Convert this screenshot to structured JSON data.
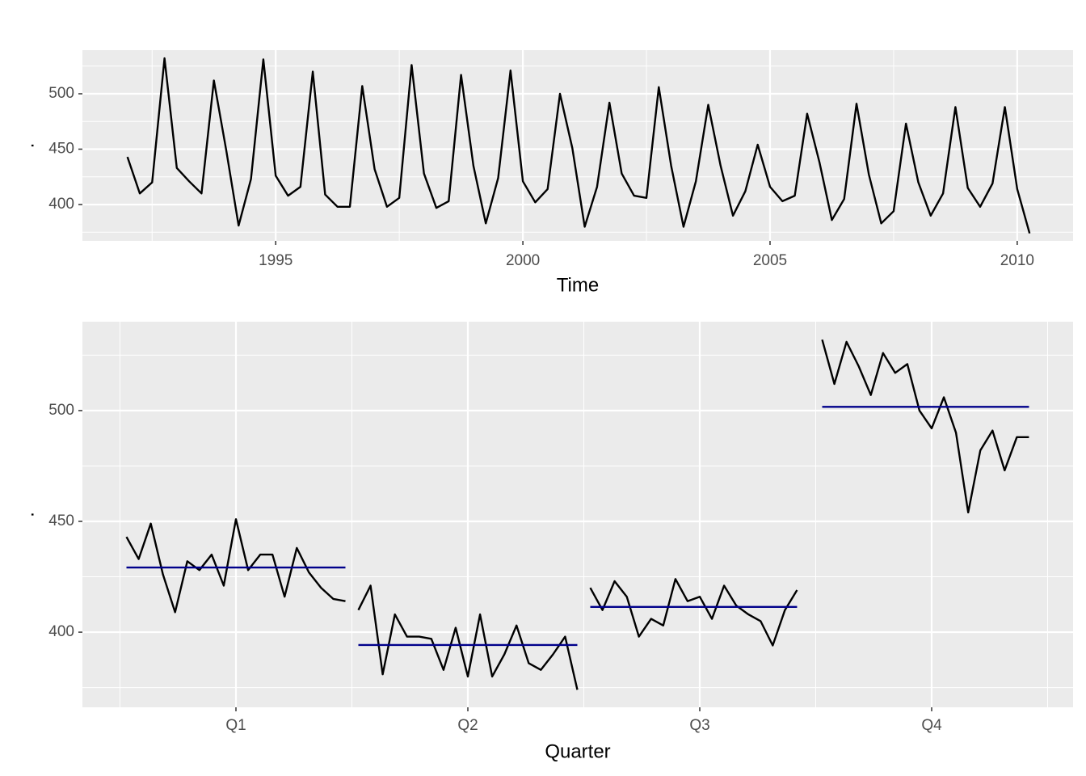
{
  "chart_data": [
    {
      "type": "line",
      "xlabel": "Time",
      "ylabel": ".",
      "color": "#000000",
      "x": [
        1992,
        1992.25,
        1992.5,
        1992.75,
        1993,
        1993.25,
        1993.5,
        1993.75,
        1994,
        1994.25,
        1994.5,
        1994.75,
        1995,
        1995.25,
        1995.5,
        1995.75,
        1996,
        1996.25,
        1996.5,
        1996.75,
        1997,
        1997.25,
        1997.5,
        1997.75,
        1998,
        1998.25,
        1998.5,
        1998.75,
        1999,
        1999.25,
        1999.5,
        1999.75,
        2000,
        2000.25,
        2000.5,
        2000.75,
        2001,
        2001.25,
        2001.5,
        2001.75,
        2002,
        2002.25,
        2002.5,
        2002.75,
        2003,
        2003.25,
        2003.5,
        2003.75,
        2004,
        2004.25,
        2004.5,
        2004.75,
        2005,
        2005.25,
        2005.5,
        2005.75,
        2006,
        2006.25,
        2006.5,
        2006.75,
        2007,
        2007.25,
        2007.5,
        2007.75,
        2008,
        2008.25,
        2008.5,
        2008.75,
        2009,
        2009.25,
        2009.5,
        2009.75,
        2010,
        2010.25
      ],
      "values": [
        443,
        410,
        420,
        532,
        433,
        421,
        410,
        512,
        449,
        381,
        423,
        531,
        426,
        408,
        416,
        520,
        409,
        398,
        398,
        507,
        432,
        398,
        406,
        526,
        428,
        397,
        403,
        517,
        435,
        383,
        424,
        521,
        421,
        402,
        414,
        500,
        451,
        380,
        416,
        492,
        428,
        408,
        406,
        506,
        435,
        380,
        421,
        490,
        435,
        390,
        412,
        454,
        416,
        403,
        408,
        482,
        438,
        386,
        405,
        491,
        427,
        383,
        394,
        473,
        420,
        390,
        410,
        488,
        415,
        398,
        419,
        488,
        414,
        374
      ],
      "xlim": [
        1991.09,
        2011.13
      ],
      "ylim": [
        367.2,
        539.4
      ],
      "xticks": [
        1995,
        2000,
        2005,
        2010
      ],
      "xticks_minor": [
        1992.5,
        1997.5,
        2002.5,
        2007.5
      ],
      "yticks": [
        400,
        450,
        500
      ],
      "yticks_minor": [
        375,
        425,
        475,
        525
      ],
      "grid": true
    },
    {
      "type": "subseries",
      "xlabel": "Quarter",
      "ylabel": ".",
      "color": "#000000",
      "mean_color": "#00008b",
      "categories": [
        "Q1",
        "Q2",
        "Q3",
        "Q4"
      ],
      "values": [
        [
          443,
          433,
          449,
          426,
          409,
          432,
          428,
          435,
          421,
          451,
          428,
          435,
          435,
          416,
          438,
          427,
          420,
          415,
          414
        ],
        [
          410,
          421,
          381,
          408,
          398,
          398,
          397,
          383,
          402,
          380,
          408,
          380,
          390,
          403,
          386,
          383,
          390,
          398,
          374
        ],
        [
          420,
          410,
          423,
          416,
          398,
          406,
          403,
          424,
          414,
          416,
          406,
          421,
          412,
          408,
          405,
          394,
          410,
          419
        ],
        [
          532,
          512,
          531,
          520,
          507,
          526,
          517,
          521,
          500,
          492,
          506,
          490,
          454,
          482,
          491,
          473,
          488,
          488
        ]
      ],
      "means": [
        429.2,
        394.2,
        411.4,
        501.7
      ],
      "ylim": [
        366.1,
        540.1
      ],
      "yticks": [
        400,
        450,
        500
      ],
      "yticks_minor": [
        375,
        425,
        475,
        525
      ],
      "grid": true
    }
  ]
}
